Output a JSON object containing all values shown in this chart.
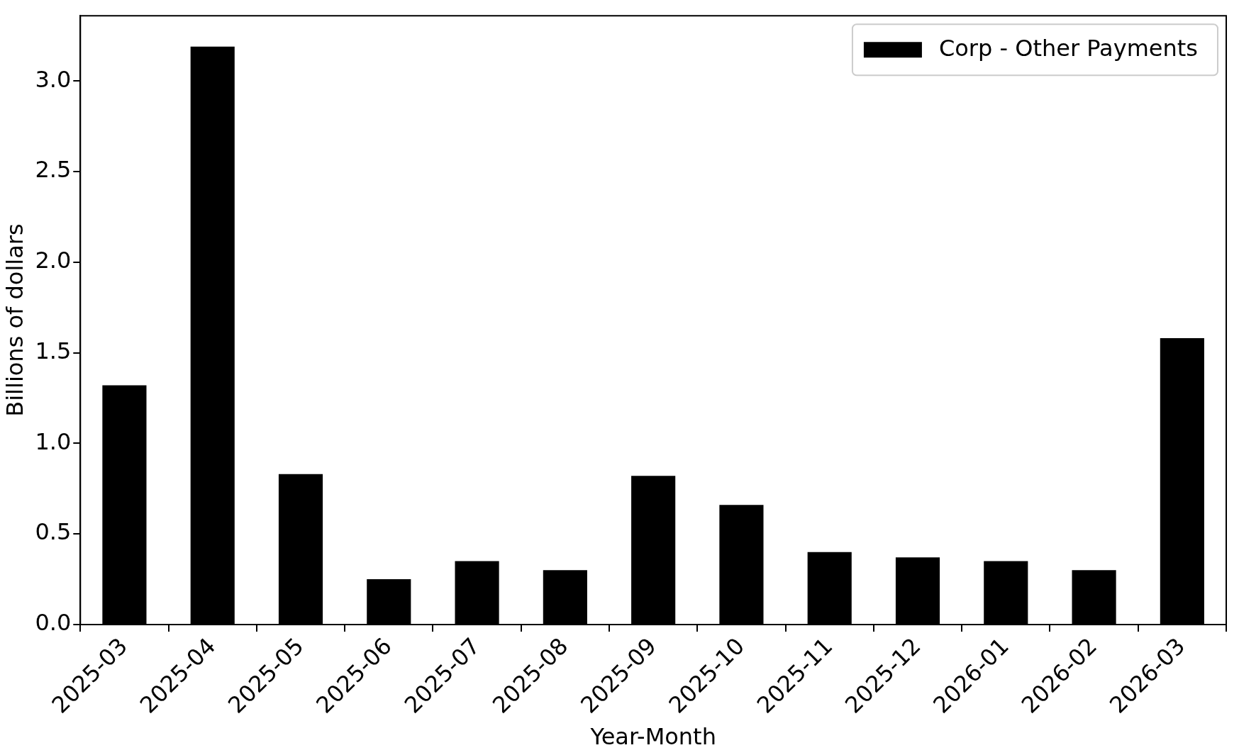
{
  "chart_data": {
    "type": "bar",
    "xlabel": "Year-Month",
    "ylabel": "Billions of dollars",
    "categories": [
      "2025-03",
      "2025-04",
      "2025-05",
      "2025-06",
      "2025-07",
      "2025-08",
      "2025-09",
      "2025-10",
      "2025-11",
      "2025-12",
      "2026-01",
      "2026-02",
      "2026-03"
    ],
    "series": [
      {
        "name": "Corp - Other Payments",
        "color": "#000000",
        "values": [
          1.32,
          3.19,
          0.83,
          0.25,
          0.35,
          0.3,
          0.82,
          0.66,
          0.4,
          0.37,
          0.35,
          0.3,
          1.58
        ]
      }
    ],
    "ylim": [
      0,
      3.36
    ],
    "yticks": [
      {
        "value": 0,
        "label": "0.0"
      },
      {
        "value": 0.5,
        "label": "0.5"
      },
      {
        "value": 1,
        "label": "1.0"
      },
      {
        "value": 1.5,
        "label": "1.5"
      },
      {
        "value": 2,
        "label": "2.0"
      },
      {
        "value": 2.5,
        "label": "2.5"
      },
      {
        "value": 3,
        "label": "3.0"
      }
    ],
    "grid": false,
    "legend": "top right"
  }
}
